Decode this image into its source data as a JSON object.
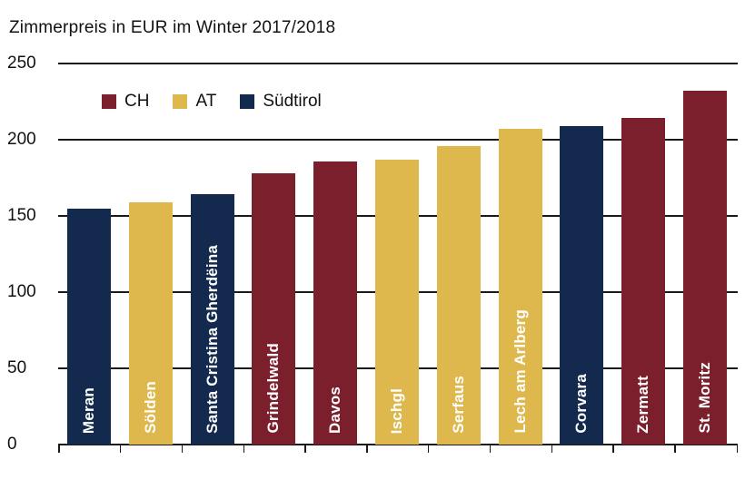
{
  "title": "Zimmerpreis in EUR im Winter 2017/2018",
  "legend": [
    {
      "label": "CH",
      "color": "#7C1F2C"
    },
    {
      "label": "AT",
      "color": "#DEB74D"
    },
    {
      "label": "Südtirol",
      "color": "#13294D"
    }
  ],
  "colors": {
    "CH": "#7C1F2C",
    "AT": "#DEB74D",
    "Südtirol": "#13294D"
  },
  "chart_data": {
    "type": "bar",
    "title": "Zimmerpreis in EUR im Winter 2017/2018",
    "categories": [
      "Meran",
      "Sölden",
      "Santa Cristina Gherdëina",
      "Grindelwald",
      "Davos",
      "Ischgl",
      "Serfaus",
      "Lech am Arlberg",
      "Corvara",
      "Zermatt",
      "St. Moritz"
    ],
    "values": [
      155,
      159,
      164,
      178,
      186,
      187,
      196,
      207,
      209,
      214,
      232
    ],
    "groups": [
      "Südtirol",
      "AT",
      "Südtirol",
      "CH",
      "CH",
      "AT",
      "AT",
      "AT",
      "Südtirol",
      "CH",
      "CH"
    ],
    "xlabel": "",
    "ylabel": "",
    "ylim": [
      0,
      250
    ],
    "yticks": [
      0,
      50,
      100,
      150,
      200,
      250
    ],
    "grid": true,
    "legend_entries": [
      "CH",
      "AT",
      "Südtirol"
    ],
    "legend_position": "top-left-inside",
    "bar_label_style": "vertical-white-inside-bottom"
  }
}
